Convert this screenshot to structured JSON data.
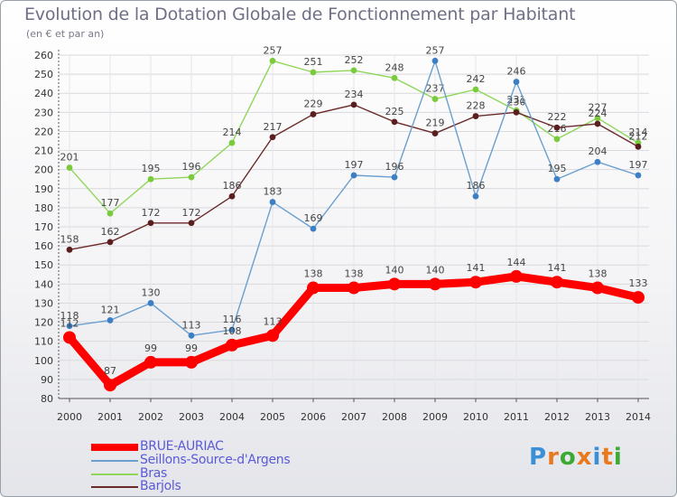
{
  "title": "Evolution de la Dotation Globale de Fonctionnement par Habitant",
  "subtitle": "(en € et par an)",
  "logo": {
    "letters": [
      "P",
      "r",
      "o",
      "x",
      "i",
      "t",
      "i"
    ],
    "colors": [
      "#3a8fd6",
      "#e8791e",
      "#3aaa35",
      "#e8791e",
      "#3a8fd6",
      "#e8791e",
      "#3aaa35"
    ]
  },
  "chart_data": {
    "type": "line",
    "title": "Evolution de la Dotation Globale de Fonctionnement par Habitant",
    "subtitle": "(en € et par an)",
    "xlabel": "",
    "ylabel": "",
    "ylim": [
      80,
      260
    ],
    "yticks": [
      80,
      90,
      100,
      110,
      120,
      130,
      140,
      150,
      160,
      170,
      180,
      190,
      200,
      210,
      220,
      230,
      240,
      250,
      260
    ],
    "grid": true,
    "legend_position": "bottom-left",
    "x": [
      "2000",
      "2001",
      "2002",
      "2003",
      "2004",
      "2005",
      "2006",
      "2007",
      "2008",
      "2009",
      "2010",
      "2011",
      "2012",
      "2013",
      "2014"
    ],
    "series": [
      {
        "name": "BRUE-AURIAC",
        "color": "#ff0000",
        "values": [
          112,
          87,
          99,
          99,
          108,
          113,
          138,
          138,
          140,
          140,
          141,
          144,
          141,
          138,
          133
        ]
      },
      {
        "name": "Seillons-Source-d'Argens",
        "color": "#6a9fcf",
        "values": [
          118,
          121,
          130,
          113,
          116,
          183,
          169,
          197,
          196,
          257,
          186,
          246,
          195,
          204,
          197
        ]
      },
      {
        "name": "Bras",
        "color": "#8fd65a",
        "values": [
          201,
          177,
          195,
          196,
          214,
          257,
          251,
          252,
          248,
          237,
          242,
          231,
          216,
          227,
          214
        ]
      },
      {
        "name": "Barjols",
        "color": "#6b2a2a",
        "values": [
          158,
          162,
          172,
          172,
          186,
          217,
          229,
          234,
          225,
          219,
          228,
          230,
          222,
          224,
          212
        ]
      }
    ]
  }
}
